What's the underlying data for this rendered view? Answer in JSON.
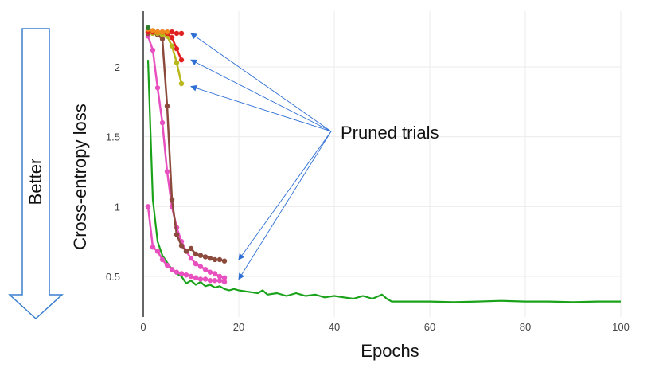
{
  "chart_data": {
    "type": "line",
    "title": "",
    "xlabel": "Epochs",
    "ylabel": "Cross-entropy loss",
    "xlim": [
      -1,
      100
    ],
    "ylim": [
      0.3,
      2.35
    ],
    "xticks": [
      0,
      20,
      40,
      60,
      80,
      100
    ],
    "yticks": [
      0.5,
      1,
      1.5,
      2
    ],
    "ytick_labels": [
      "0.5",
      "1",
      "1.5",
      "2"
    ],
    "grid": true,
    "side_label": "Better",
    "annotation": "Pruned trials",
    "series": [
      {
        "color": "#1aa31a",
        "markers": false,
        "points": [
          [
            1,
            2.05
          ],
          [
            2,
            1.05
          ],
          [
            3,
            0.75
          ],
          [
            4,
            0.65
          ],
          [
            5,
            0.6
          ],
          [
            6,
            0.55
          ],
          [
            7,
            0.52
          ],
          [
            8,
            0.5
          ],
          [
            9,
            0.45
          ],
          [
            10,
            0.47
          ],
          [
            11,
            0.44
          ],
          [
            12,
            0.46
          ],
          [
            13,
            0.43
          ],
          [
            14,
            0.44
          ],
          [
            15,
            0.42
          ],
          [
            16,
            0.43
          ],
          [
            17,
            0.41
          ],
          [
            18,
            0.4
          ],
          [
            19,
            0.41
          ],
          [
            20,
            0.4
          ],
          [
            22,
            0.39
          ],
          [
            24,
            0.38
          ],
          [
            25,
            0.4
          ],
          [
            26,
            0.37
          ],
          [
            28,
            0.38
          ],
          [
            30,
            0.36
          ],
          [
            32,
            0.38
          ],
          [
            34,
            0.36
          ],
          [
            36,
            0.37
          ],
          [
            38,
            0.35
          ],
          [
            40,
            0.36
          ],
          [
            42,
            0.35
          ],
          [
            44,
            0.34
          ],
          [
            46,
            0.36
          ],
          [
            48,
            0.34
          ],
          [
            50,
            0.37
          ],
          [
            51,
            0.34
          ],
          [
            52,
            0.32
          ],
          [
            55,
            0.32
          ],
          [
            60,
            0.32
          ],
          [
            65,
            0.315
          ],
          [
            70,
            0.32
          ],
          [
            75,
            0.325
          ],
          [
            80,
            0.32
          ],
          [
            85,
            0.32
          ],
          [
            90,
            0.315
          ],
          [
            95,
            0.32
          ],
          [
            100,
            0.32
          ]
        ]
      },
      {
        "color": "#e84fbf",
        "markers": true,
        "points": [
          [
            1,
            2.22
          ],
          [
            2,
            2.12
          ],
          [
            3,
            1.85
          ],
          [
            4,
            1.6
          ],
          [
            5,
            1.25
          ],
          [
            6,
            1.0
          ],
          [
            7,
            0.85
          ],
          [
            8,
            0.75
          ],
          [
            9,
            0.68
          ],
          [
            10,
            0.63
          ],
          [
            11,
            0.59
          ],
          [
            12,
            0.57
          ],
          [
            13,
            0.55
          ],
          [
            14,
            0.53
          ],
          [
            15,
            0.52
          ],
          [
            16,
            0.5
          ],
          [
            17,
            0.49
          ]
        ]
      },
      {
        "color": "#e84fbf",
        "markers": true,
        "points": [
          [
            1,
            1.0
          ],
          [
            2,
            0.71
          ],
          [
            3,
            0.68
          ],
          [
            4,
            0.62
          ],
          [
            5,
            0.58
          ],
          [
            6,
            0.55
          ],
          [
            7,
            0.53
          ],
          [
            8,
            0.52
          ],
          [
            9,
            0.51
          ],
          [
            10,
            0.5
          ],
          [
            11,
            0.49
          ],
          [
            12,
            0.48
          ],
          [
            13,
            0.48
          ],
          [
            14,
            0.47
          ],
          [
            15,
            0.47
          ],
          [
            16,
            0.47
          ],
          [
            17,
            0.46
          ]
        ]
      },
      {
        "color": "#8b4a3c",
        "markers": true,
        "points": [
          [
            1,
            2.24
          ],
          [
            2,
            2.24
          ],
          [
            3,
            2.23
          ],
          [
            4,
            2.2
          ],
          [
            5,
            1.72
          ],
          [
            6,
            1.05
          ],
          [
            7,
            0.8
          ],
          [
            8,
            0.72
          ],
          [
            9,
            0.68
          ],
          [
            10,
            0.7
          ],
          [
            11,
            0.66
          ],
          [
            12,
            0.65
          ],
          [
            13,
            0.64
          ],
          [
            14,
            0.63
          ],
          [
            15,
            0.62
          ],
          [
            16,
            0.62
          ],
          [
            17,
            0.61
          ]
        ]
      },
      {
        "color": "#b8b81a",
        "markers": true,
        "points": [
          [
            1,
            2.25
          ],
          [
            2,
            2.24
          ],
          [
            3,
            2.24
          ],
          [
            4,
            2.23
          ],
          [
            5,
            2.22
          ],
          [
            6,
            2.15
          ],
          [
            7,
            2.03
          ],
          [
            8,
            1.88
          ]
        ]
      },
      {
        "color": "#e02020",
        "markers": true,
        "points": [
          [
            1,
            2.26
          ],
          [
            2,
            2.25
          ],
          [
            3,
            2.25
          ],
          [
            4,
            2.25
          ],
          [
            5,
            2.24
          ],
          [
            6,
            2.21
          ],
          [
            7,
            2.13
          ],
          [
            8,
            2.05
          ]
        ]
      },
      {
        "color": "#e02020",
        "markers": true,
        "points": [
          [
            1,
            2.25
          ],
          [
            2,
            2.25
          ],
          [
            3,
            2.25
          ],
          [
            4,
            2.25
          ],
          [
            5,
            2.25
          ],
          [
            6,
            2.25
          ],
          [
            7,
            2.24
          ],
          [
            8,
            2.24
          ]
        ]
      },
      {
        "color": "#f08a1a",
        "markers": true,
        "points": [
          [
            1,
            2.27
          ],
          [
            2,
            2.26
          ],
          [
            3,
            2.25
          ],
          [
            4,
            2.25
          ],
          [
            5,
            2.25
          ]
        ]
      },
      {
        "color": "#2f7f2f",
        "markers": true,
        "points": [
          [
            1,
            2.28
          ]
        ]
      }
    ],
    "arrow_targets": [
      [
        8,
        2.24
      ],
      [
        8,
        2.05
      ],
      [
        8,
        1.86
      ],
      [
        18,
        0.62
      ],
      [
        18,
        0.48
      ]
    ]
  }
}
